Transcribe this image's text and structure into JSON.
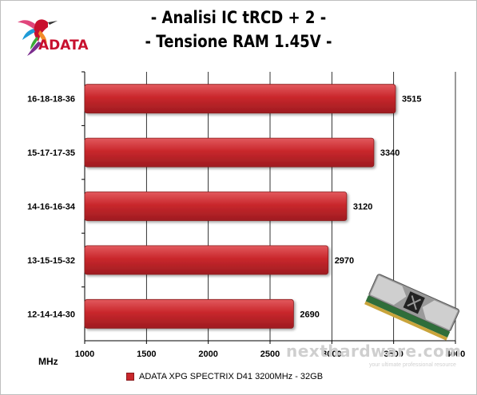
{
  "title_line1": "- Analisi IC  tRCD + 2 -",
  "title_line2": "- Tensione RAM 1.45V -",
  "logo_text": "ADATA",
  "watermark": "nexthardware.com",
  "watermark_sub": "your ultimate professional resource",
  "colors": {
    "bar": "#c9272c",
    "bar_dark": "#9e1c21",
    "bar_light": "#e25a5e",
    "grid": "#000000",
    "logo_red": "#c8102e"
  },
  "chart_data": {
    "type": "bar",
    "orientation": "horizontal",
    "categories": [
      "16-18-18-36",
      "15-17-17-35",
      "14-16-16-34",
      "13-15-15-32",
      "12-14-14-30"
    ],
    "series": [
      {
        "name": "ADATA XPG SPECTRIX D41 3200MHz - 32GB",
        "values": [
          3515,
          3340,
          3120,
          2970,
          2690
        ]
      }
    ],
    "xlabel": "MHz",
    "xlim": [
      1000,
      4000
    ],
    "xticks": [
      1000,
      1500,
      2000,
      2500,
      3000,
      3500,
      4000
    ],
    "grid": true,
    "legend": "bottom"
  }
}
